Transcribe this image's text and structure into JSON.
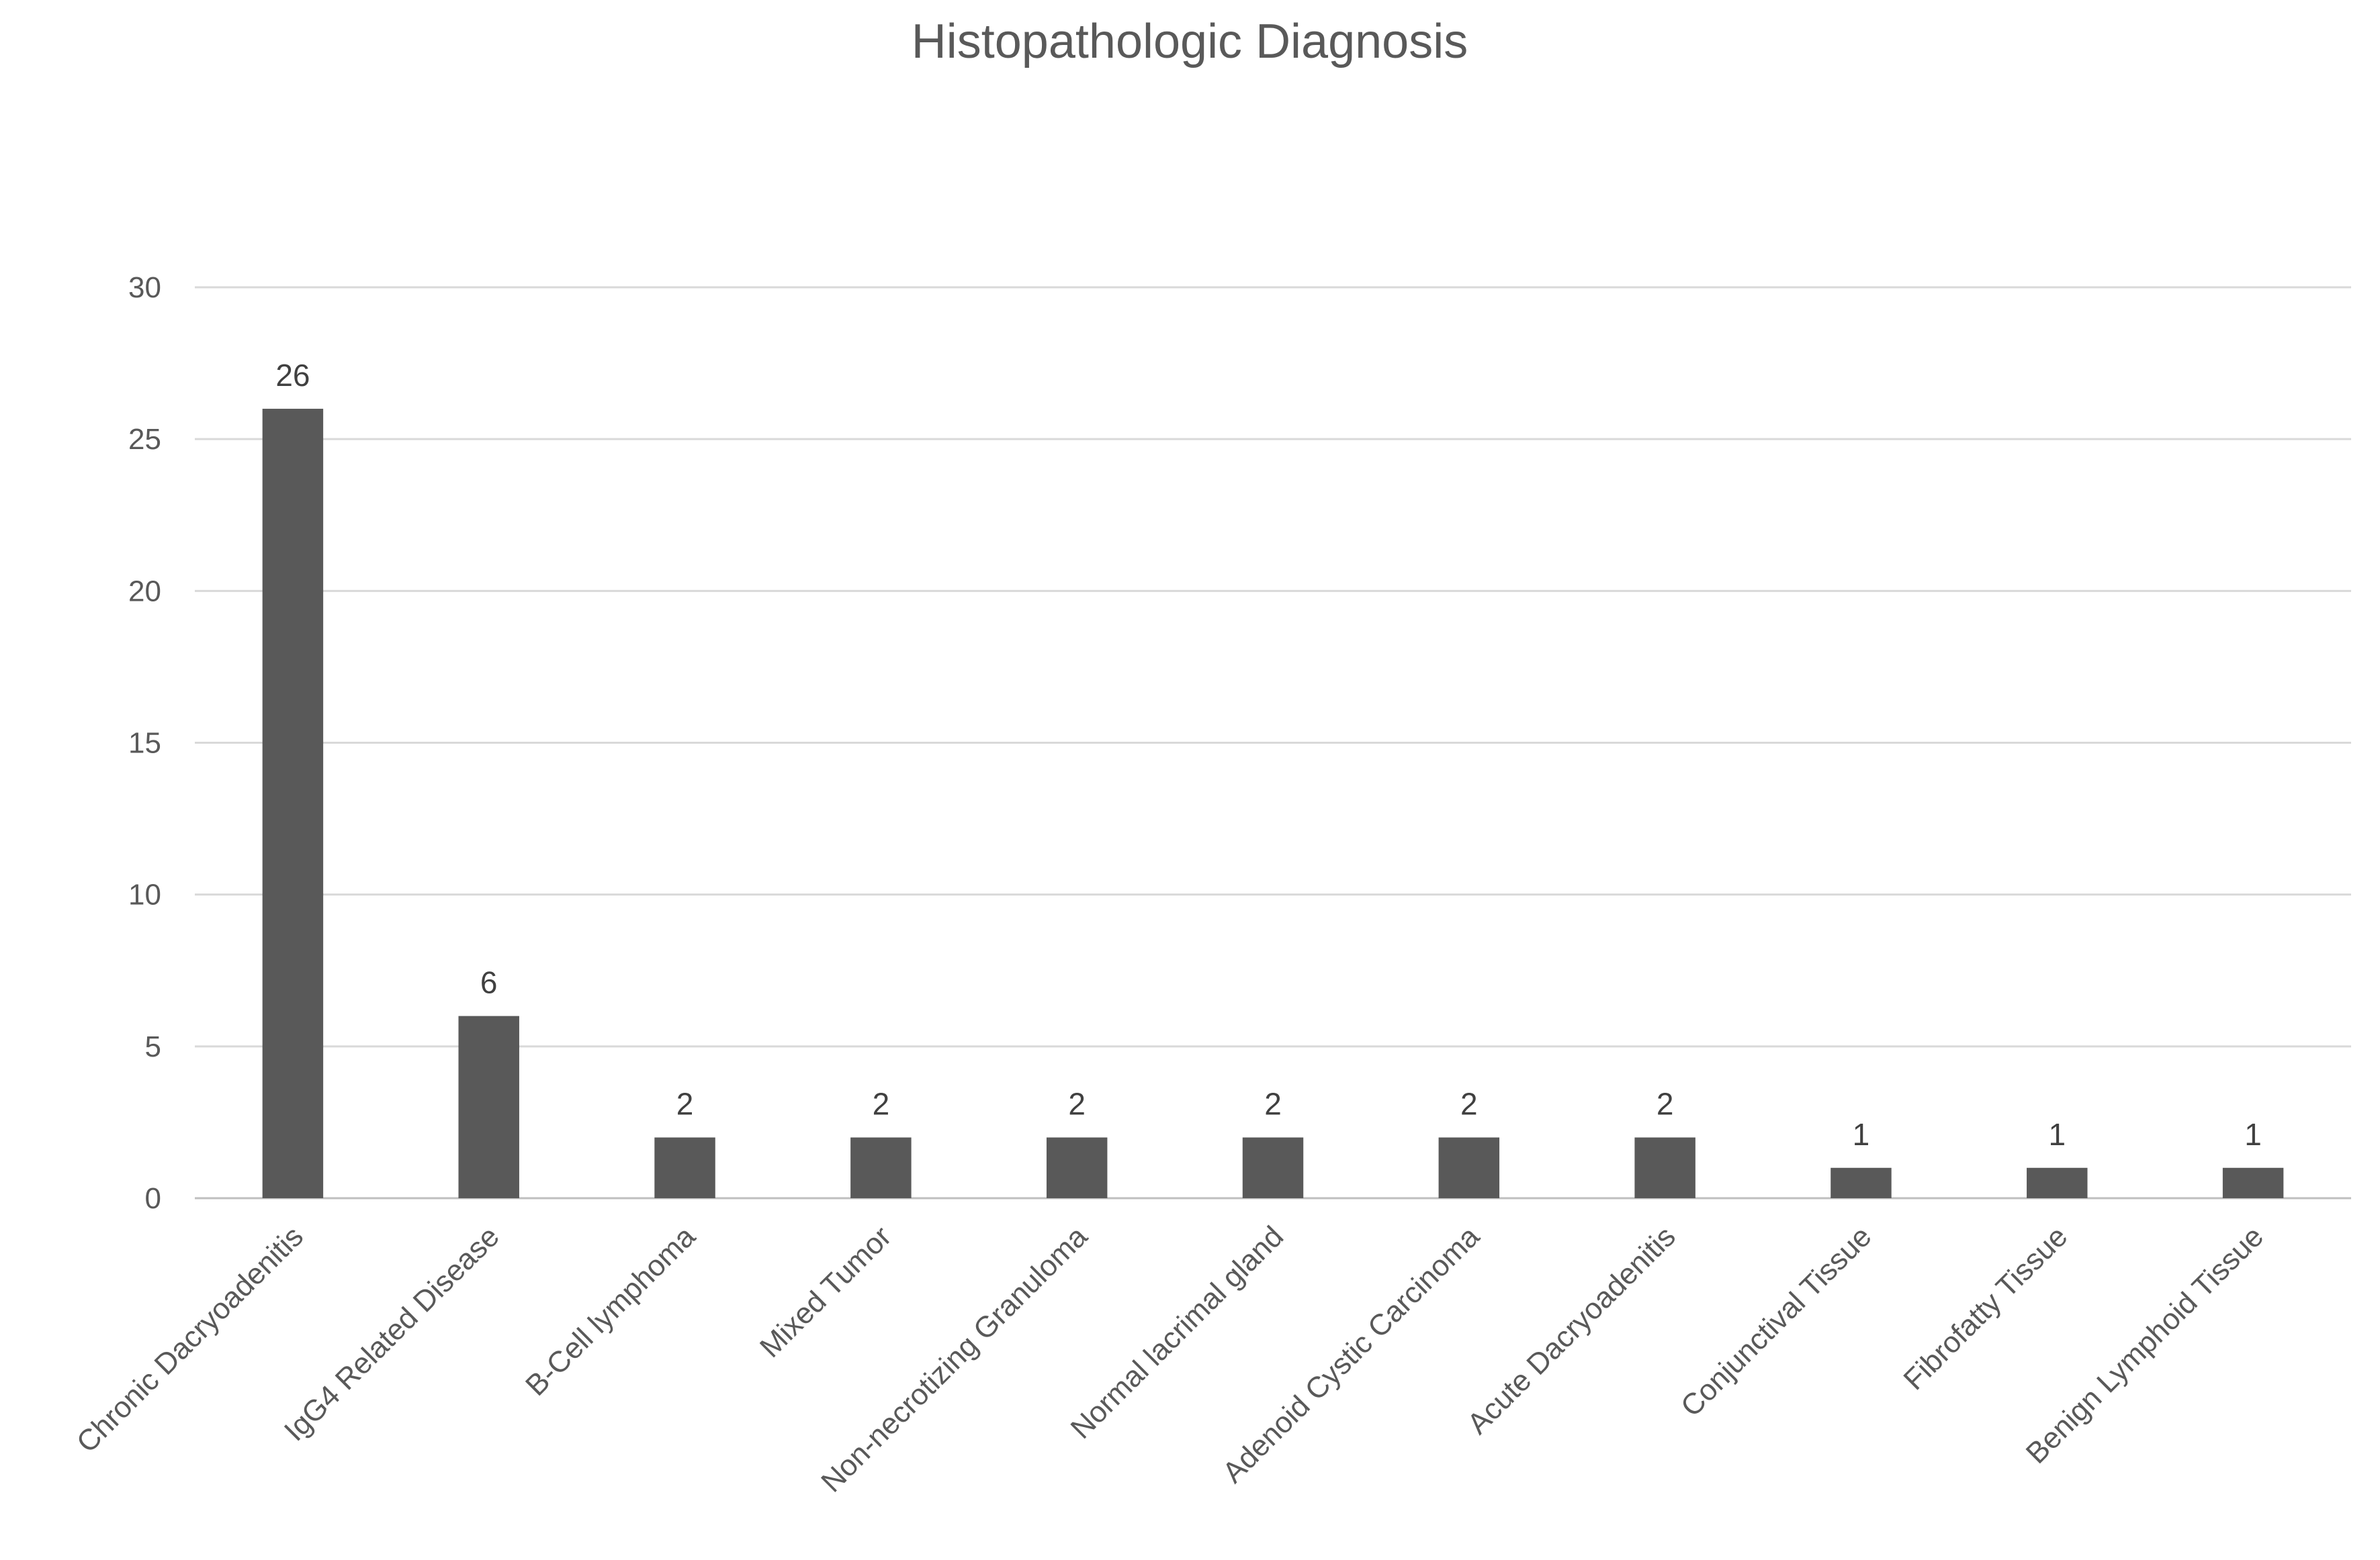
{
  "chart_data": {
    "type": "bar",
    "title": "Histopathologic Diagnosis",
    "xlabel": "",
    "ylabel": "",
    "categories": [
      "Chronic Dacryoadenitis",
      "IgG4 Related Disease",
      "B-Cell lymphoma",
      "Mixed Tumor",
      "Non-necrotizing Granuloma",
      "Normal lacrimal gland",
      "Adenoid Cystic Carcinoma",
      "Acute Dacryoadenitis",
      "Conjunctival Tissue",
      "Fibrofatty Tissue",
      "Benign Lymphoid Tissue"
    ],
    "values": [
      26,
      6,
      2,
      2,
      2,
      2,
      2,
      2,
      1,
      1,
      1
    ],
    "ylim": [
      0,
      30
    ],
    "yticks": [
      0,
      5,
      10,
      15,
      20,
      25,
      30
    ],
    "grid": true,
    "legend": "none",
    "data_labels": true,
    "colors": {
      "bar": "#595959",
      "grid": "#d9d9d9",
      "text": "#595959"
    }
  }
}
